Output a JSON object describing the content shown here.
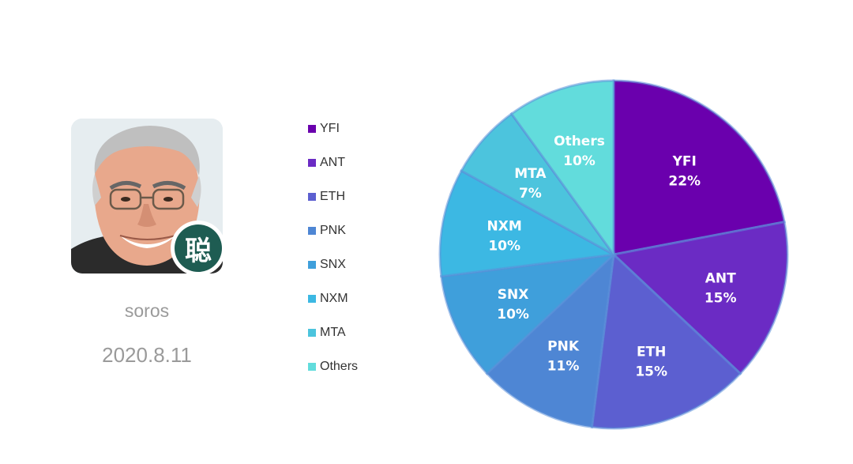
{
  "profile": {
    "name": "soros",
    "date": "2020.8.11",
    "badge_text": "聪"
  },
  "chart_data": {
    "type": "pie",
    "title": "",
    "categories": [
      "YFI",
      "ANT",
      "ETH",
      "PNK",
      "SNX",
      "NXM",
      "MTA",
      "Others"
    ],
    "values": [
      22,
      15,
      15,
      11,
      10,
      10,
      7,
      10
    ],
    "value_labels": [
      "22%",
      "15%",
      "15%",
      "11%",
      "10%",
      "10%",
      "7%",
      "10%"
    ],
    "colors": [
      "#6a00ad",
      "#6b2bc4",
      "#5c5fd0",
      "#4e86d4",
      "#3f9fdb",
      "#3cb8e3",
      "#4cc4dd",
      "#62dcdc"
    ],
    "legend_position": "left"
  }
}
